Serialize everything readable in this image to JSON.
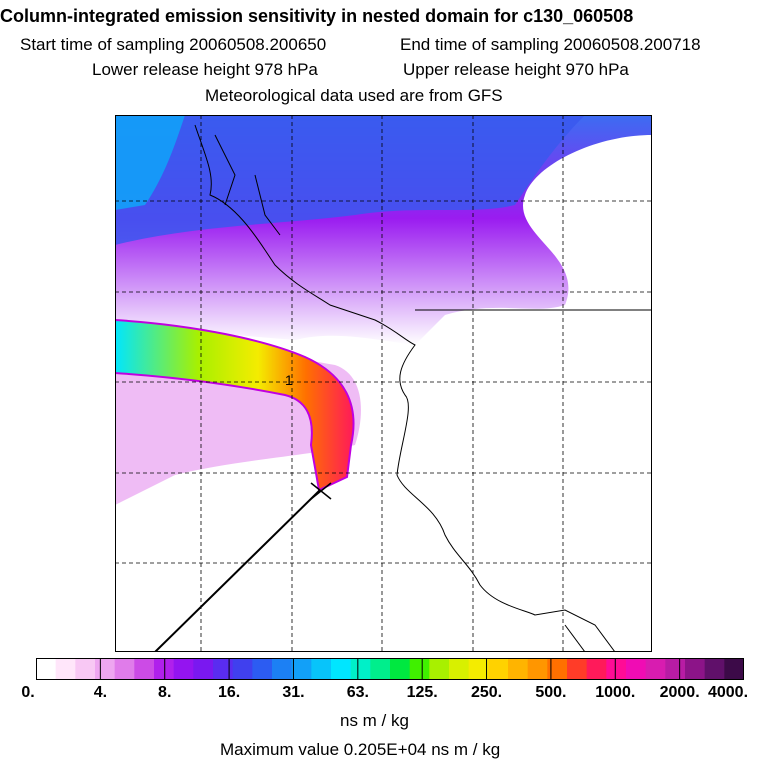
{
  "header": {
    "title": "Column-integrated emission sensitivity in nested domain for c130_060508",
    "start_time": "Start time of sampling 20060508.200650",
    "end_time": "End time of sampling 20060508.200718",
    "lower_release": "Lower release height  978 hPa",
    "upper_release": "Upper release height  970 hPa",
    "met_data": "Meteorological data used are from GFS"
  },
  "map": {
    "point_label": "1",
    "grid_style": "dashed"
  },
  "colorbar": {
    "tick_labels": [
      "0.",
      "4.",
      "8.",
      "16.",
      "31.",
      "63.",
      "125.",
      "250.",
      "500.",
      "1000.",
      "2000.",
      "4000."
    ],
    "colors": [
      "#ffffff",
      "#ffe6fa",
      "#f8c8f4",
      "#eea6f0",
      "#e07cea",
      "#cc4be6",
      "#b020ec",
      "#9414f0",
      "#7a18f0",
      "#5a2cf0",
      "#4040ee",
      "#2c5cf2",
      "#1c80f4",
      "#12a0f8",
      "#08c4fa",
      "#00e6ff",
      "#00f0c8",
      "#00ee8c",
      "#00e840",
      "#40f000",
      "#a8f000",
      "#d8f000",
      "#f4ec00",
      "#ffd200",
      "#ffb400",
      "#ff9600",
      "#ff7000",
      "#ff3c28",
      "#ff1a5a",
      "#ff0c96",
      "#f00cb4",
      "#d81cb0",
      "#b81ca4",
      "#8c1488",
      "#60106a",
      "#3c0a48"
    ],
    "units": "ns m / kg"
  },
  "footer": {
    "max_value": "Maximum value  0.205E+04 ns m / kg"
  }
}
